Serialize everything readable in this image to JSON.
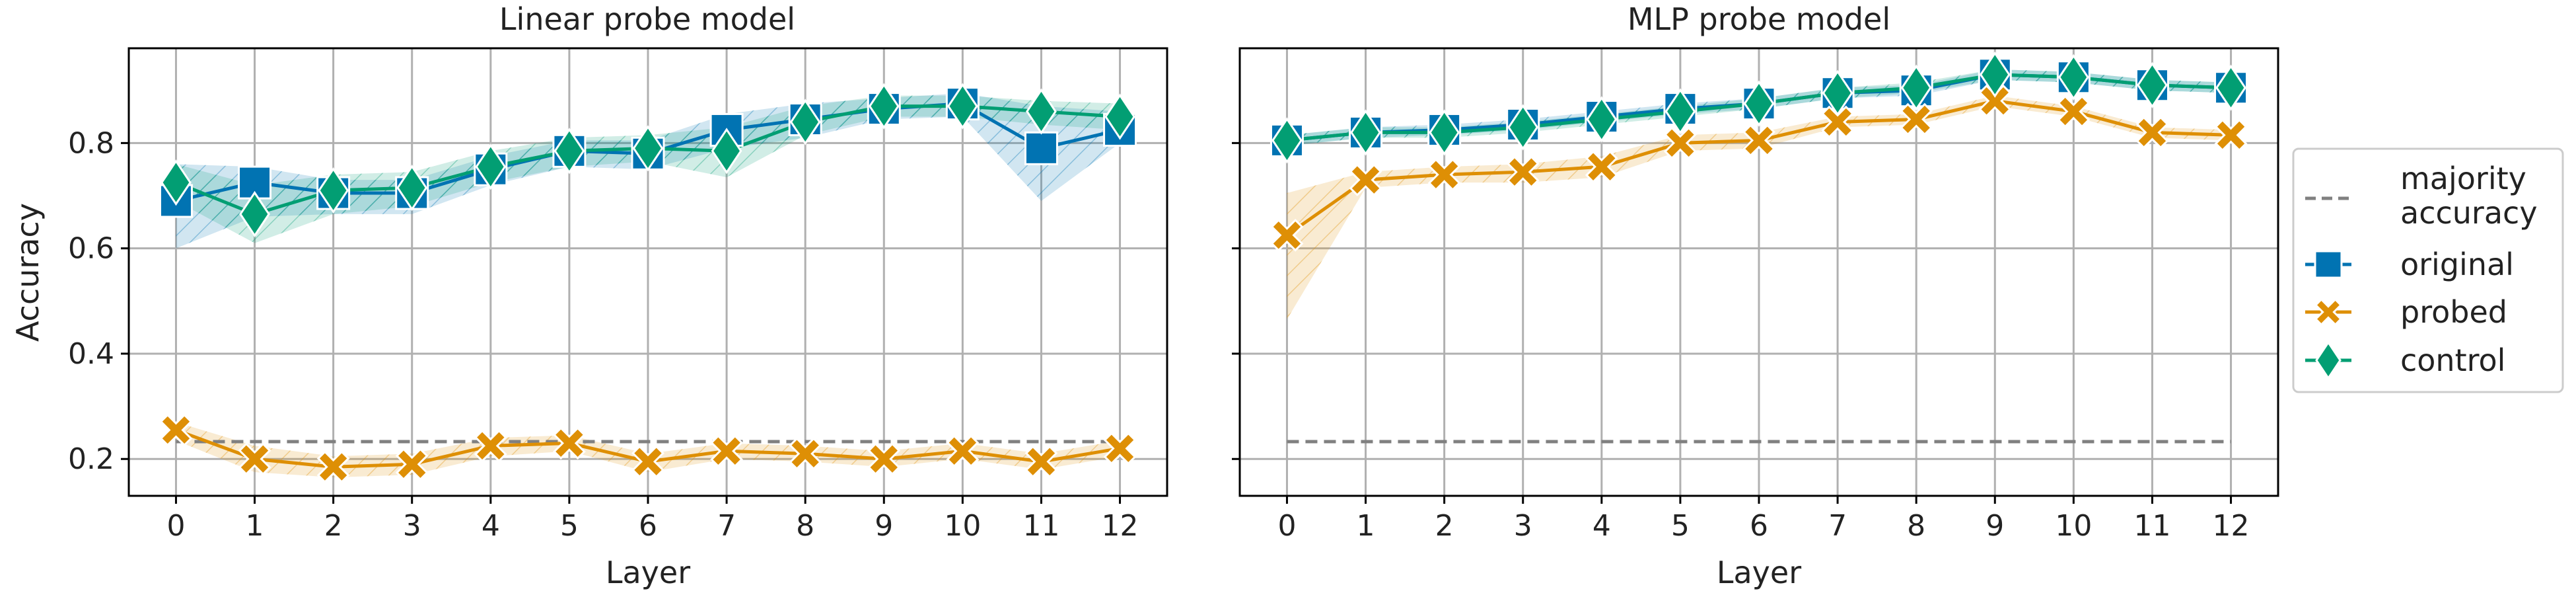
{
  "chart_data": [
    {
      "type": "line",
      "title": "Linear probe model",
      "xlabel": "Layer",
      "ylabel": "Accuracy",
      "x": [
        0,
        1,
        2,
        3,
        4,
        5,
        6,
        7,
        8,
        9,
        10,
        11,
        12
      ],
      "xlim": [
        -0.6,
        12.6
      ],
      "ylim": [
        0.13,
        0.98
      ],
      "yticks": [
        0.2,
        0.4,
        0.6,
        0.8
      ],
      "grid": true,
      "series": [
        {
          "name": "original",
          "marker": "square",
          "color": "#0173b2",
          "values": [
            0.69,
            0.725,
            0.705,
            0.705,
            0.75,
            0.785,
            0.78,
            0.825,
            0.845,
            0.865,
            0.875,
            0.79,
            0.825
          ],
          "lower": [
            0.6,
            0.66,
            0.665,
            0.665,
            0.72,
            0.755,
            0.75,
            0.79,
            0.81,
            0.845,
            0.85,
            0.69,
            0.8
          ],
          "upper": [
            0.76,
            0.755,
            0.73,
            0.73,
            0.775,
            0.805,
            0.805,
            0.855,
            0.875,
            0.885,
            0.895,
            0.87,
            0.86
          ]
        },
        {
          "name": "probed",
          "marker": "x",
          "color": "#de8f05",
          "values": [
            0.255,
            0.2,
            0.185,
            0.19,
            0.225,
            0.23,
            0.195,
            0.215,
            0.21,
            0.2,
            0.215,
            0.195,
            0.22
          ],
          "lower": [
            0.235,
            0.175,
            0.165,
            0.17,
            0.205,
            0.215,
            0.175,
            0.2,
            0.195,
            0.185,
            0.2,
            0.18,
            0.205
          ],
          "upper": [
            0.27,
            0.225,
            0.205,
            0.21,
            0.24,
            0.245,
            0.21,
            0.23,
            0.225,
            0.215,
            0.23,
            0.21,
            0.235
          ]
        },
        {
          "name": "control",
          "marker": "diamond",
          "color": "#029e73",
          "values": [
            0.725,
            0.665,
            0.71,
            0.715,
            0.755,
            0.785,
            0.79,
            0.785,
            0.84,
            0.87,
            0.87,
            0.86,
            0.85
          ],
          "lower": [
            0.69,
            0.61,
            0.665,
            0.68,
            0.725,
            0.755,
            0.765,
            0.735,
            0.815,
            0.85,
            0.85,
            0.835,
            0.825
          ],
          "upper": [
            0.76,
            0.72,
            0.74,
            0.745,
            0.785,
            0.81,
            0.815,
            0.83,
            0.87,
            0.89,
            0.89,
            0.88,
            0.875
          ]
        }
      ],
      "reference_line": {
        "name": "majority accuracy",
        "value": 0.233,
        "style": "dashed",
        "color": "#808080"
      }
    },
    {
      "type": "line",
      "title": "MLP probe model",
      "xlabel": "Layer",
      "ylabel": "",
      "x": [
        0,
        1,
        2,
        3,
        4,
        5,
        6,
        7,
        8,
        9,
        10,
        11,
        12
      ],
      "xlim": [
        -0.6,
        12.6
      ],
      "ylim": [
        0.13,
        0.98
      ],
      "yticks": [
        0.2,
        0.4,
        0.6,
        0.8
      ],
      "grid": true,
      "series": [
        {
          "name": "original",
          "marker": "square",
          "color": "#0173b2",
          "values": [
            0.805,
            0.82,
            0.825,
            0.835,
            0.85,
            0.865,
            0.875,
            0.895,
            0.9,
            0.93,
            0.925,
            0.91,
            0.905
          ],
          "lower": [
            0.795,
            0.81,
            0.815,
            0.825,
            0.84,
            0.855,
            0.865,
            0.885,
            0.89,
            0.92,
            0.915,
            0.9,
            0.895
          ],
          "upper": [
            0.815,
            0.83,
            0.835,
            0.845,
            0.86,
            0.875,
            0.885,
            0.905,
            0.91,
            0.94,
            0.935,
            0.92,
            0.915
          ]
        },
        {
          "name": "probed",
          "marker": "x",
          "color": "#de8f05",
          "values": [
            0.625,
            0.73,
            0.74,
            0.745,
            0.755,
            0.8,
            0.805,
            0.84,
            0.845,
            0.88,
            0.86,
            0.82,
            0.815
          ],
          "lower": [
            0.465,
            0.715,
            0.725,
            0.725,
            0.735,
            0.785,
            0.79,
            0.83,
            0.835,
            0.87,
            0.85,
            0.81,
            0.805
          ],
          "upper": [
            0.705,
            0.745,
            0.755,
            0.76,
            0.775,
            0.815,
            0.82,
            0.85,
            0.855,
            0.89,
            0.87,
            0.83,
            0.825
          ]
        },
        {
          "name": "control",
          "marker": "diamond",
          "color": "#029e73",
          "values": [
            0.805,
            0.82,
            0.82,
            0.83,
            0.845,
            0.86,
            0.875,
            0.895,
            0.905,
            0.93,
            0.925,
            0.91,
            0.905
          ],
          "lower": [
            0.795,
            0.81,
            0.81,
            0.82,
            0.835,
            0.85,
            0.865,
            0.885,
            0.895,
            0.92,
            0.915,
            0.9,
            0.895
          ],
          "upper": [
            0.815,
            0.83,
            0.83,
            0.84,
            0.855,
            0.87,
            0.885,
            0.905,
            0.915,
            0.94,
            0.935,
            0.92,
            0.915
          ]
        }
      ],
      "reference_line": {
        "name": "majority accuracy",
        "value": 0.233,
        "style": "dashed",
        "color": "#808080"
      }
    }
  ],
  "legend": {
    "placement": "right",
    "entries": [
      {
        "label": "majority\naccuracy",
        "style": "dashed",
        "color": "#808080"
      },
      {
        "label": "original",
        "marker": "square",
        "color": "#0173b2"
      },
      {
        "label": "probed",
        "marker": "x",
        "color": "#de8f05"
      },
      {
        "label": "control",
        "marker": "diamond",
        "color": "#029e73"
      }
    ]
  }
}
